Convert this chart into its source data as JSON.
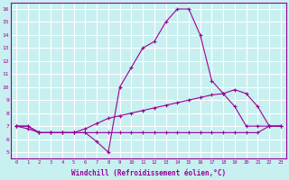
{
  "xlabel": "Windchill (Refroidissement éolien,°C)",
  "bg_color": "#c8f0f0",
  "line_color": "#990099",
  "grid_color": "#ffffff",
  "xlim": [
    -0.5,
    23.5
  ],
  "ylim": [
    4.5,
    16.5
  ],
  "yticks": [
    5,
    6,
    7,
    8,
    9,
    10,
    11,
    12,
    13,
    14,
    15,
    16
  ],
  "xticks": [
    0,
    1,
    2,
    3,
    4,
    5,
    6,
    7,
    8,
    9,
    10,
    11,
    12,
    13,
    14,
    15,
    16,
    17,
    18,
    19,
    20,
    21,
    22,
    23
  ],
  "series1_x": [
    0,
    1,
    2,
    3,
    4,
    5,
    6,
    7,
    8,
    9,
    10,
    11,
    12,
    13,
    14,
    15,
    16,
    17,
    18,
    19,
    20,
    21,
    22,
    23
  ],
  "series1_y": [
    7.0,
    7.0,
    6.5,
    6.5,
    6.5,
    6.5,
    6.5,
    5.8,
    5.0,
    10.0,
    11.5,
    13.0,
    13.5,
    15.0,
    16.0,
    16.0,
    14.0,
    10.5,
    9.5,
    8.5,
    7.0,
    7.0,
    7.0,
    7.0
  ],
  "series2_x": [
    0,
    1,
    2,
    3,
    4,
    5,
    6,
    7,
    8,
    9,
    10,
    11,
    12,
    13,
    14,
    15,
    16,
    17,
    18,
    19,
    20,
    21,
    22,
    23
  ],
  "series2_y": [
    7.0,
    7.0,
    6.5,
    6.5,
    6.5,
    6.5,
    6.8,
    7.2,
    7.6,
    7.8,
    8.0,
    8.2,
    8.4,
    8.6,
    8.8,
    9.0,
    9.2,
    9.4,
    9.5,
    9.8,
    9.5,
    8.5,
    7.0,
    7.0
  ],
  "series3_x": [
    0,
    1,
    2,
    3,
    4,
    5,
    6,
    7,
    8,
    9,
    10,
    11,
    12,
    13,
    14,
    15,
    16,
    17,
    18,
    19,
    20,
    21,
    22,
    23
  ],
  "series3_y": [
    7.0,
    6.8,
    6.5,
    6.5,
    6.5,
    6.5,
    6.5,
    6.5,
    6.5,
    6.5,
    6.5,
    6.5,
    6.5,
    6.5,
    6.5,
    6.5,
    6.5,
    6.5,
    6.5,
    6.5,
    6.5,
    6.5,
    7.0,
    7.0
  ]
}
